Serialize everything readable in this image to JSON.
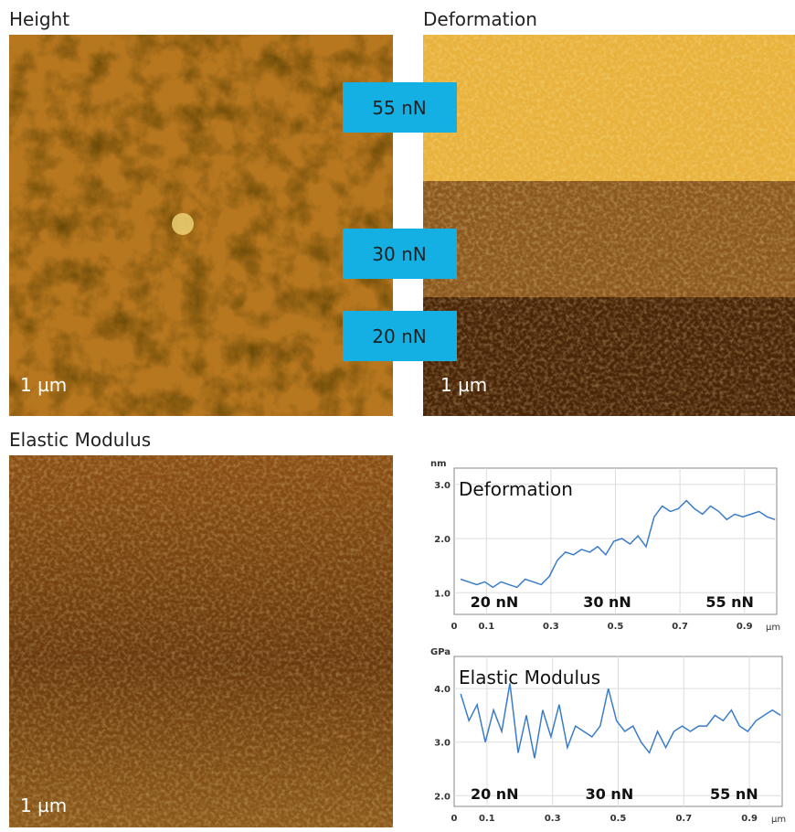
{
  "panels": [
    {
      "title": "Height",
      "scale_bar": "1 µm"
    },
    {
      "title": "Deformation",
      "scale_bar": "1 µm"
    },
    {
      "title": "Elastic Modulus",
      "scale_bar": "1 µm"
    }
  ],
  "force_labels": [
    "55 nN",
    "30 nN",
    "20 nN"
  ],
  "chart_data": [
    {
      "type": "line",
      "title": "Deformation",
      "y_unit": "nm",
      "x_unit": "µm",
      "annotations": [
        "20 nN",
        "30 nN",
        "55 nN"
      ],
      "x": [
        0.02,
        0.045,
        0.07,
        0.095,
        0.12,
        0.145,
        0.17,
        0.195,
        0.22,
        0.245,
        0.27,
        0.295,
        0.32,
        0.345,
        0.37,
        0.395,
        0.42,
        0.445,
        0.47,
        0.495,
        0.52,
        0.545,
        0.57,
        0.595,
        0.62,
        0.645,
        0.67,
        0.695,
        0.72,
        0.745,
        0.77,
        0.795,
        0.82,
        0.845,
        0.87,
        0.895,
        0.92,
        0.945,
        0.97,
        0.995
      ],
      "values": [
        1.25,
        1.2,
        1.15,
        1.2,
        1.1,
        1.2,
        1.15,
        1.1,
        1.25,
        1.2,
        1.15,
        1.3,
        1.6,
        1.75,
        1.7,
        1.8,
        1.75,
        1.85,
        1.7,
        1.95,
        2.0,
        1.9,
        2.05,
        1.85,
        2.4,
        2.6,
        2.5,
        2.55,
        2.7,
        2.55,
        2.45,
        2.6,
        2.5,
        2.35,
        2.45,
        2.4,
        2.45,
        2.5,
        2.4,
        2.35
      ],
      "color": "#3a7cc8",
      "xlim": [
        0,
        1.0
      ],
      "ylim": [
        0.6,
        3.3
      ],
      "xticks": [
        0,
        0.1,
        0.3,
        0.5,
        0.7,
        0.9
      ],
      "yticks": [
        {
          "value": 1,
          "label": "1.0"
        },
        {
          "value": 2,
          "label": "2.0"
        },
        {
          "value": 3,
          "label": "3.0"
        }
      ],
      "grid": true
    },
    {
      "type": "line",
      "title": "Elastic Modulus",
      "y_unit": "GPa",
      "x_unit": "µm",
      "annotations": [
        "20 nN",
        "30 nN",
        "55 nN"
      ],
      "x": [
        0.02,
        0.045,
        0.07,
        0.095,
        0.12,
        0.145,
        0.17,
        0.195,
        0.22,
        0.245,
        0.27,
        0.295,
        0.32,
        0.345,
        0.37,
        0.395,
        0.42,
        0.445,
        0.47,
        0.495,
        0.52,
        0.545,
        0.57,
        0.595,
        0.62,
        0.645,
        0.67,
        0.695,
        0.72,
        0.745,
        0.77,
        0.795,
        0.82,
        0.845,
        0.87,
        0.895,
        0.92,
        0.945,
        0.97,
        0.995
      ],
      "values": [
        3.9,
        3.4,
        3.7,
        3.0,
        3.6,
        3.2,
        4.1,
        2.8,
        3.5,
        2.7,
        3.6,
        3.1,
        3.7,
        2.9,
        3.3,
        3.2,
        3.1,
        3.3,
        4.0,
        3.4,
        3.2,
        3.3,
        3.0,
        2.8,
        3.2,
        2.9,
        3.2,
        3.3,
        3.2,
        3.3,
        3.3,
        3.5,
        3.4,
        3.6,
        3.3,
        3.2,
        3.4,
        3.5,
        3.6,
        3.5
      ],
      "color": "#3a7cc8",
      "xlim": [
        0,
        1.0
      ],
      "ylim": [
        1.8,
        4.6
      ],
      "xticks": [
        0,
        0.1,
        0.3,
        0.5,
        0.7,
        0.9
      ],
      "yticks": [
        {
          "value": 2,
          "label": "2.0"
        },
        {
          "value": 3,
          "label": "3.0"
        },
        {
          "value": 4,
          "label": "4.0"
        }
      ],
      "grid": true
    }
  ]
}
